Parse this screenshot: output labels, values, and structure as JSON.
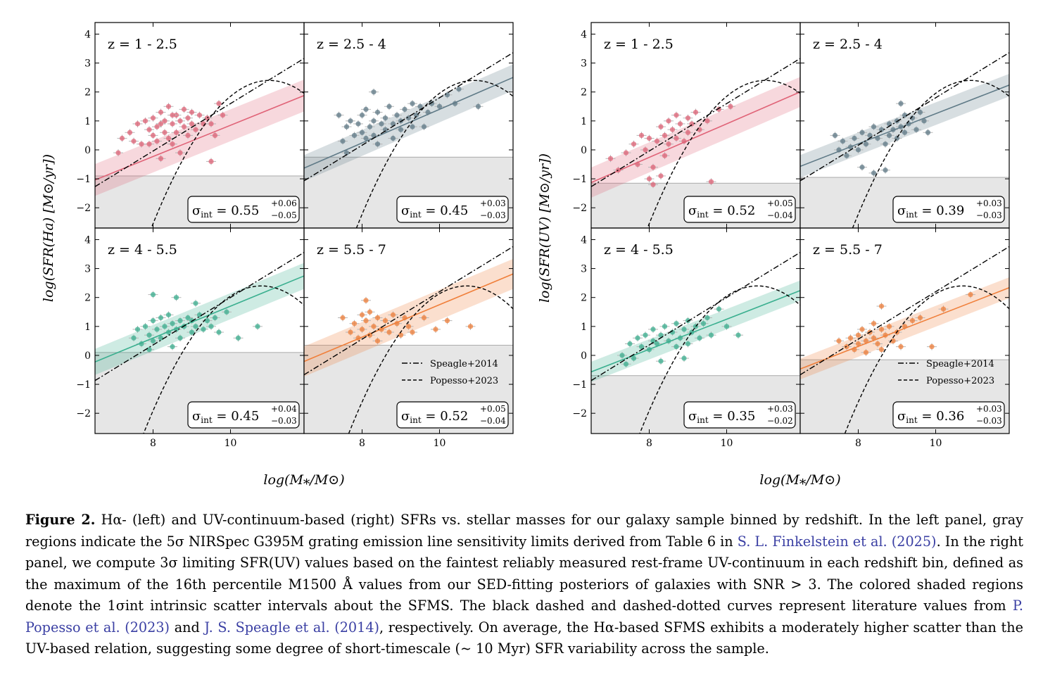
{
  "figure": {
    "xlabel": "log(M⁎/M⊙)",
    "groups": [
      {
        "ylabel": "log(SFR(Ha) [M⊙/yr])"
      },
      {
        "ylabel": "log(SFR(UV) [M⊙/yr])"
      }
    ],
    "legend": {
      "speagle": "Speagle+2014",
      "popesso": "Popesso+2023"
    },
    "colors": {
      "z1": "#e06377",
      "z2": "#5f7a87",
      "z3": "#3aaf8f",
      "z4": "#f07f3a",
      "limit_fill": "#e6e6e6"
    }
  },
  "chart_data": [
    {
      "type": "scatter",
      "group": "Ha",
      "title": "z = 1 - 2.5",
      "color": "#e06377",
      "xlim": [
        6.5,
        11.9
      ],
      "ylim": [
        -2.7,
        4.4
      ],
      "xticks": [
        8,
        10
      ],
      "yticks": [
        -2,
        -1,
        0,
        1,
        2,
        3,
        4
      ],
      "limit": -0.9,
      "sigma_int": {
        "value": "0.55",
        "plus": "+0.06",
        "minus": "−0.05"
      },
      "fit": {
        "slope": 0.54,
        "intercept": -4.55,
        "halfwidth": 0.55
      },
      "points": [
        [
          7.1,
          -0.1
        ],
        [
          7.2,
          0.4
        ],
        [
          7.4,
          0.6
        ],
        [
          7.5,
          0.3
        ],
        [
          7.6,
          0.9
        ],
        [
          7.7,
          0.2
        ],
        [
          7.8,
          1.0
        ],
        [
          7.9,
          0.7
        ],
        [
          8.0,
          0.5
        ],
        [
          8.0,
          1.1
        ],
        [
          8.1,
          0.3
        ],
        [
          8.1,
          0.8
        ],
        [
          8.2,
          1.3
        ],
        [
          8.2,
          -0.3
        ],
        [
          8.3,
          0.6
        ],
        [
          8.3,
          1.0
        ],
        [
          8.4,
          0.4
        ],
        [
          8.4,
          1.5
        ],
        [
          8.5,
          0.9
        ],
        [
          8.5,
          0.2
        ],
        [
          8.6,
          1.2
        ],
        [
          8.6,
          0.6
        ],
        [
          8.7,
          -0.1
        ],
        [
          8.7,
          1.0
        ],
        [
          8.8,
          0.8
        ],
        [
          8.8,
          1.4
        ],
        [
          8.9,
          0.5
        ],
        [
          8.9,
          1.1
        ],
        [
          9.0,
          0.9
        ],
        [
          9.0,
          1.3
        ],
        [
          9.1,
          0.7
        ],
        [
          9.2,
          1.2
        ],
        [
          9.3,
          0.9
        ],
        [
          9.4,
          1.1
        ],
        [
          9.5,
          0.9
        ],
        [
          9.6,
          0.5
        ],
        [
          9.7,
          1.6
        ],
        [
          9.8,
          1.2
        ],
        [
          8.5,
          1.2
        ],
        [
          8.2,
          0.9
        ],
        [
          7.9,
          0.2
        ],
        [
          9.5,
          -0.4
        ]
      ]
    },
    {
      "type": "scatter",
      "group": "Ha",
      "title": "z = 2.5 - 4",
      "color": "#5f7a87",
      "xlim": [
        6.5,
        11.9
      ],
      "ylim": [
        -2.7,
        4.4
      ],
      "xticks": [
        8,
        10
      ],
      "yticks": [
        -2,
        -1,
        0,
        1,
        2,
        3,
        4
      ],
      "limit": -0.25,
      "sigma_int": {
        "value": "0.45",
        "plus": "+0.03",
        "minus": "−0.03"
      },
      "fit": {
        "slope": 0.58,
        "intercept": -4.4,
        "halfwidth": 0.45
      },
      "points": [
        [
          7.4,
          1.2
        ],
        [
          7.5,
          0.3
        ],
        [
          7.6,
          0.8
        ],
        [
          7.7,
          1.0
        ],
        [
          7.8,
          0.5
        ],
        [
          7.9,
          0.9
        ],
        [
          8.0,
          0.6
        ],
        [
          8.0,
          1.2
        ],
        [
          8.1,
          0.4
        ],
        [
          8.1,
          1.4
        ],
        [
          8.2,
          0.8
        ],
        [
          8.3,
          1.0
        ],
        [
          8.3,
          0.5
        ],
        [
          8.4,
          1.3
        ],
        [
          8.4,
          0.2
        ],
        [
          8.5,
          0.9
        ],
        [
          8.6,
          1.1
        ],
        [
          8.6,
          0.7
        ],
        [
          8.7,
          1.5
        ],
        [
          8.8,
          0.9
        ],
        [
          8.8,
          0.4
        ],
        [
          8.9,
          1.2
        ],
        [
          9.0,
          1.0
        ],
        [
          9.0,
          0.7
        ],
        [
          9.1,
          1.4
        ],
        [
          9.2,
          1.1
        ],
        [
          9.3,
          0.8
        ],
        [
          9.3,
          1.6
        ],
        [
          9.4,
          1.2
        ],
        [
          9.5,
          1.5
        ],
        [
          9.6,
          0.8
        ],
        [
          9.7,
          1.3
        ],
        [
          9.8,
          1.6
        ],
        [
          10.0,
          1.5
        ],
        [
          10.2,
          1.9
        ],
        [
          10.4,
          1.6
        ],
        [
          10.5,
          2.1
        ],
        [
          11.0,
          1.5
        ],
        [
          8.3,
          2.0
        ],
        [
          7.6,
          -0.1
        ]
      ]
    },
    {
      "type": "scatter",
      "group": "Ha",
      "title": "z = 4 - 5.5",
      "color": "#3aaf8f",
      "xlim": [
        6.5,
        11.9
      ],
      "ylim": [
        -2.7,
        4.4
      ],
      "xticks": [
        8,
        10
      ],
      "yticks": [
        -2,
        -1,
        0,
        1,
        2,
        3,
        4
      ],
      "limit": 0.1,
      "sigma_int": {
        "value": "0.45",
        "plus": "+0.04",
        "minus": "−0.03"
      },
      "fit": {
        "slope": 0.55,
        "intercept": -3.8,
        "halfwidth": 0.45
      },
      "points": [
        [
          7.5,
          0.6
        ],
        [
          7.6,
          0.9
        ],
        [
          7.7,
          0.4
        ],
        [
          7.8,
          1.0
        ],
        [
          7.9,
          0.7
        ],
        [
          8.0,
          1.2
        ],
        [
          8.0,
          0.5
        ],
        [
          8.1,
          0.9
        ],
        [
          8.2,
          1.3
        ],
        [
          8.2,
          0.6
        ],
        [
          8.3,
          1.0
        ],
        [
          8.4,
          0.8
        ],
        [
          8.4,
          1.4
        ],
        [
          8.5,
          0.3
        ],
        [
          8.5,
          1.1
        ],
        [
          8.6,
          0.9
        ],
        [
          8.7,
          1.2
        ],
        [
          8.7,
          0.6
        ],
        [
          8.8,
          1.0
        ],
        [
          8.9,
          1.3
        ],
        [
          9.0,
          0.8
        ],
        [
          9.0,
          1.2
        ],
        [
          9.1,
          1.0
        ],
        [
          9.2,
          1.4
        ],
        [
          9.3,
          0.9
        ],
        [
          9.4,
          1.2
        ],
        [
          9.5,
          1.0
        ],
        [
          9.6,
          1.3
        ],
        [
          9.7,
          0.8
        ],
        [
          9.9,
          1.5
        ],
        [
          10.2,
          0.6
        ],
        [
          10.7,
          1.0
        ],
        [
          8.0,
          2.1
        ],
        [
          8.6,
          2.0
        ],
        [
          9.1,
          1.8
        ],
        [
          7.9,
          0.2
        ]
      ]
    },
    {
      "type": "scatter",
      "group": "Ha",
      "title": "z = 5.5 - 7",
      "color": "#f07f3a",
      "xlim": [
        6.5,
        11.9
      ],
      "ylim": [
        -2.7,
        4.4
      ],
      "xticks": [
        8,
        10
      ],
      "yticks": [
        -2,
        -1,
        0,
        1,
        2,
        3,
        4
      ],
      "limit": 0.35,
      "sigma_int": {
        "value": "0.52",
        "plus": "+0.05",
        "minus": "−0.04"
      },
      "fit": {
        "slope": 0.56,
        "intercept": -3.85,
        "halfwidth": 0.52
      },
      "points": [
        [
          7.5,
          1.3
        ],
        [
          7.7,
          0.8
        ],
        [
          7.8,
          1.1
        ],
        [
          7.9,
          0.6
        ],
        [
          8.0,
          1.4
        ],
        [
          8.0,
          0.9
        ],
        [
          8.1,
          1.2
        ],
        [
          8.2,
          0.7
        ],
        [
          8.2,
          1.5
        ],
        [
          8.3,
          1.0
        ],
        [
          8.4,
          0.5
        ],
        [
          8.4,
          1.3
        ],
        [
          8.5,
          0.9
        ],
        [
          8.6,
          1.2
        ],
        [
          8.7,
          0.8
        ],
        [
          8.8,
          1.4
        ],
        [
          8.9,
          1.1
        ],
        [
          9.0,
          0.7
        ],
        [
          9.1,
          1.3
        ],
        [
          9.2,
          1.0
        ],
        [
          9.3,
          0.8
        ],
        [
          8.1,
          1.9
        ],
        [
          9.6,
          1.3
        ],
        [
          9.9,
          0.9
        ],
        [
          10.2,
          1.2
        ],
        [
          10.8,
          1.0
        ]
      ]
    },
    {
      "type": "scatter",
      "group": "UV",
      "title": "z = 1 - 2.5",
      "color": "#e06377",
      "xlim": [
        6.5,
        11.9
      ],
      "ylim": [
        -2.7,
        4.4
      ],
      "xticks": [
        8,
        10
      ],
      "yticks": [
        -2,
        -1,
        0,
        1,
        2,
        3,
        4
      ],
      "limit": -1.15,
      "sigma_int": {
        "value": "0.52",
        "plus": "+0.05",
        "minus": "−0.04"
      },
      "fit": {
        "slope": 0.58,
        "intercept": -4.9,
        "halfwidth": 0.52
      },
      "points": [
        [
          7.0,
          -0.3
        ],
        [
          7.2,
          -0.7
        ],
        [
          7.4,
          -0.1
        ],
        [
          7.6,
          0.2
        ],
        [
          7.7,
          -0.5
        ],
        [
          7.8,
          0.5
        ],
        [
          7.9,
          0.0
        ],
        [
          8.0,
          -1.0
        ],
        [
          8.0,
          0.4
        ],
        [
          8.1,
          -0.6
        ],
        [
          8.2,
          0.3
        ],
        [
          8.3,
          0.8
        ],
        [
          8.3,
          -0.9
        ],
        [
          8.4,
          0.5
        ],
        [
          8.4,
          -0.2
        ],
        [
          8.5,
          1.0
        ],
        [
          8.5,
          0.2
        ],
        [
          8.6,
          0.7
        ],
        [
          8.7,
          1.2
        ],
        [
          8.7,
          0.4
        ],
        [
          8.8,
          0.9
        ],
        [
          8.9,
          0.3
        ],
        [
          9.0,
          1.1
        ],
        [
          9.0,
          0.6
        ],
        [
          9.1,
          0.9
        ],
        [
          9.2,
          1.3
        ],
        [
          9.3,
          0.7
        ],
        [
          9.5,
          1.0
        ],
        [
          9.8,
          1.4
        ],
        [
          10.1,
          1.5
        ],
        [
          8.1,
          -1.2
        ],
        [
          9.6,
          -1.1
        ]
      ]
    },
    {
      "type": "scatter",
      "group": "UV",
      "title": "z = 2.5 - 4",
      "color": "#5f7a87",
      "xlim": [
        6.5,
        11.9
      ],
      "ylim": [
        -2.7,
        4.4
      ],
      "xticks": [
        8,
        10
      ],
      "yticks": [
        -2,
        -1,
        0,
        1,
        2,
        3,
        4
      ],
      "limit": -0.95,
      "sigma_int": {
        "value": "0.39",
        "plus": "+0.03",
        "minus": "−0.03"
      },
      "fit": {
        "slope": 0.52,
        "intercept": -3.95,
        "halfwidth": 0.39
      },
      "points": [
        [
          7.4,
          0.5
        ],
        [
          7.5,
          0.0
        ],
        [
          7.6,
          0.3
        ],
        [
          7.7,
          -0.2
        ],
        [
          7.8,
          0.1
        ],
        [
          7.9,
          0.4
        ],
        [
          8.0,
          0.0
        ],
        [
          8.1,
          -0.6
        ],
        [
          8.1,
          0.6
        ],
        [
          8.2,
          0.2
        ],
        [
          8.3,
          0.5
        ],
        [
          8.4,
          -0.8
        ],
        [
          8.4,
          0.8
        ],
        [
          8.5,
          0.4
        ],
        [
          8.6,
          0.7
        ],
        [
          8.7,
          0.2
        ],
        [
          8.8,
          0.9
        ],
        [
          8.8,
          0.5
        ],
        [
          8.9,
          0.7
        ],
        [
          9.0,
          1.0
        ],
        [
          9.0,
          0.4
        ],
        [
          9.1,
          0.8
        ],
        [
          9.2,
          1.2
        ],
        [
          9.2,
          0.6
        ],
        [
          9.3,
          0.9
        ],
        [
          9.4,
          1.1
        ],
        [
          9.5,
          0.7
        ],
        [
          9.6,
          1.3
        ],
        [
          9.7,
          1.0
        ],
        [
          9.8,
          0.6
        ],
        [
          9.1,
          1.6
        ],
        [
          8.7,
          -0.7
        ]
      ]
    },
    {
      "type": "scatter",
      "group": "UV",
      "title": "z = 4 - 5.5",
      "color": "#3aaf8f",
      "xlim": [
        6.5,
        11.9
      ],
      "ylim": [
        -2.7,
        4.4
      ],
      "xticks": [
        8,
        10
      ],
      "yticks": [
        -2,
        -1,
        0,
        1,
        2,
        3,
        4
      ],
      "limit": -0.7,
      "sigma_int": {
        "value": "0.35",
        "plus": "+0.03",
        "minus": "−0.02"
      },
      "fit": {
        "slope": 0.52,
        "intercept": -3.95,
        "halfwidth": 0.35
      },
      "points": [
        [
          7.3,
          0.0
        ],
        [
          7.5,
          0.4
        ],
        [
          7.6,
          -0.1
        ],
        [
          7.7,
          0.6
        ],
        [
          7.8,
          0.3
        ],
        [
          7.9,
          0.7
        ],
        [
          8.0,
          0.2
        ],
        [
          8.1,
          0.5
        ],
        [
          8.1,
          0.9
        ],
        [
          8.2,
          0.4
        ],
        [
          8.3,
          0.7
        ],
        [
          8.3,
          -0.2
        ],
        [
          8.4,
          1.0
        ],
        [
          8.5,
          0.5
        ],
        [
          8.6,
          0.8
        ],
        [
          8.7,
          0.3
        ],
        [
          8.7,
          1.1
        ],
        [
          8.8,
          0.6
        ],
        [
          8.9,
          0.9
        ],
        [
          9.0,
          0.4
        ],
        [
          9.0,
          1.2
        ],
        [
          9.1,
          0.8
        ],
        [
          9.2,
          1.0
        ],
        [
          9.3,
          0.6
        ],
        [
          9.4,
          1.1
        ],
        [
          9.5,
          1.3
        ],
        [
          9.6,
          0.7
        ],
        [
          9.8,
          1.6
        ],
        [
          10.0,
          1.0
        ],
        [
          10.3,
          0.7
        ],
        [
          7.4,
          -0.3
        ],
        [
          8.9,
          -0.1
        ]
      ]
    },
    {
      "type": "scatter",
      "group": "UV",
      "title": "z = 5.5 - 7",
      "color": "#f07f3a",
      "xlim": [
        6.5,
        11.9
      ],
      "ylim": [
        -2.7,
        4.4
      ],
      "xticks": [
        8,
        10
      ],
      "yticks": [
        -2,
        -1,
        0,
        1,
        2,
        3,
        4
      ],
      "limit": -0.15,
      "sigma_int": {
        "value": "0.36",
        "plus": "+0.03",
        "minus": "−0.03"
      },
      "fit": {
        "slope": 0.52,
        "intercept": -3.85,
        "halfwidth": 0.36
      },
      "points": [
        [
          7.5,
          0.5
        ],
        [
          7.7,
          0.3
        ],
        [
          7.8,
          0.6
        ],
        [
          7.9,
          0.2
        ],
        [
          8.0,
          0.7
        ],
        [
          8.0,
          0.4
        ],
        [
          8.1,
          0.9
        ],
        [
          8.2,
          0.5
        ],
        [
          8.2,
          0.1
        ],
        [
          8.3,
          0.8
        ],
        [
          8.4,
          0.6
        ],
        [
          8.4,
          1.1
        ],
        [
          8.5,
          0.4
        ],
        [
          8.6,
          0.9
        ],
        [
          8.6,
          0.2
        ],
        [
          8.7,
          0.7
        ],
        [
          8.8,
          1.0
        ],
        [
          8.9,
          0.5
        ],
        [
          9.0,
          0.8
        ],
        [
          9.1,
          0.3
        ],
        [
          9.2,
          1.0
        ],
        [
          9.4,
          1.2
        ],
        [
          9.6,
          1.3
        ],
        [
          9.9,
          0.3
        ],
        [
          10.2,
          1.6
        ],
        [
          10.9,
          2.1
        ],
        [
          8.6,
          1.7
        ]
      ]
    }
  ],
  "caption": {
    "label": "Figure 2.",
    "text_1": " Hα- (left) and UV-continuum-based (right) SFRs vs.  stellar masses for our galaxy sample binned by redshift. In the left panel, gray regions indicate the 5σ NIRSpec G395M grating emission line sensitivity limits derived from Table 6 in ",
    "cite_1": "S. L. Finkelstein et al. (2025)",
    "text_2": ". In the right panel, we compute 3σ limiting SFR(UV) values based on the faintest reliably measured rest-frame UV-continuum in each redshift bin, defined as the maximum of the 16th percentile M1500 Å values from our SED-fitting posteriors of galaxies with SNR > 3.  The colored shaded regions denote the 1σint intrinsic scatter intervals about the SFMS. The black dashed and dashed-dotted curves represent literature values from ",
    "cite_2": "P. Popesso et al. (2023)",
    "text_3": " and ",
    "cite_3": "J. S. Speagle et al. (2014)",
    "text_4": ", respectively.  On average, the Hα-based SFMS exhibits a moderately higher scatter than the UV-based relation, suggesting some degree of short-timescale (∼ 10 Myr) SFR variability across the sample."
  }
}
